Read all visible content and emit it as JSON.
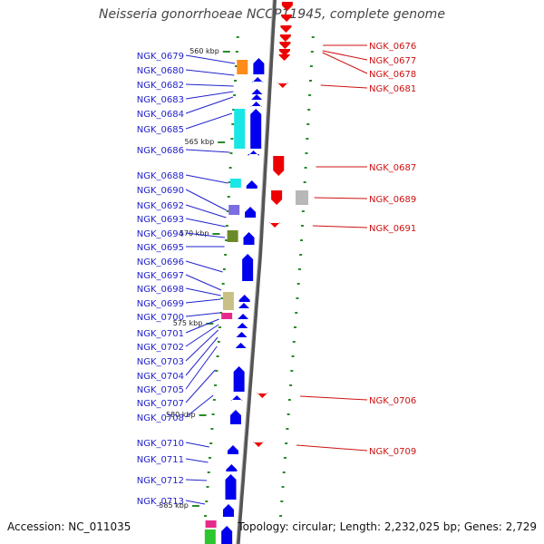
{
  "title": "Neisseria gonorrhoeae NCCP11945, complete genome",
  "footer": {
    "accession": "Accession: NC_011035",
    "summary": "Topology: circular; Length: 2,232,025 bp; Genes: 2,729"
  },
  "scale_labels": [
    "560 kbp",
    "565 kbp",
    "570 kbp",
    "575 kbp",
    "580 kbp",
    "585 kbp"
  ],
  "left_labels": [
    "NGK_0679",
    "NGK_0680",
    "NGK_0682",
    "NGK_0683",
    "NGK_0684",
    "NGK_0685",
    "NGK_0686",
    "NGK_0688",
    "NGK_0690",
    "NGK_0692",
    "NGK_0693",
    "NGK_0694",
    "NGK_0695",
    "NGK_0696",
    "NGK_0697",
    "NGK_0698",
    "NGK_0699",
    "NGK_0700",
    "NGK_0701",
    "NGK_0702",
    "NGK_0703",
    "NGK_0704",
    "NGK_0705",
    "NGK_0707",
    "NGK_0708",
    "NGK_0710",
    "NGK_0711",
    "NGK_0712",
    "NGK_0713"
  ],
  "right_labels": [
    "NGK_0676",
    "NGK_0677",
    "NGK_0678",
    "NGK_0681",
    "NGK_0687",
    "NGK_0689",
    "NGK_0691",
    "NGK_0706",
    "NGK_0709"
  ],
  "colors": {
    "left_label": "#2222cc",
    "right_label": "#cc1111",
    "minus_strand": "#0000ee",
    "plus_strand": "#ee0000",
    "tick": "#2a8a2a",
    "axis": "#888888"
  }
}
